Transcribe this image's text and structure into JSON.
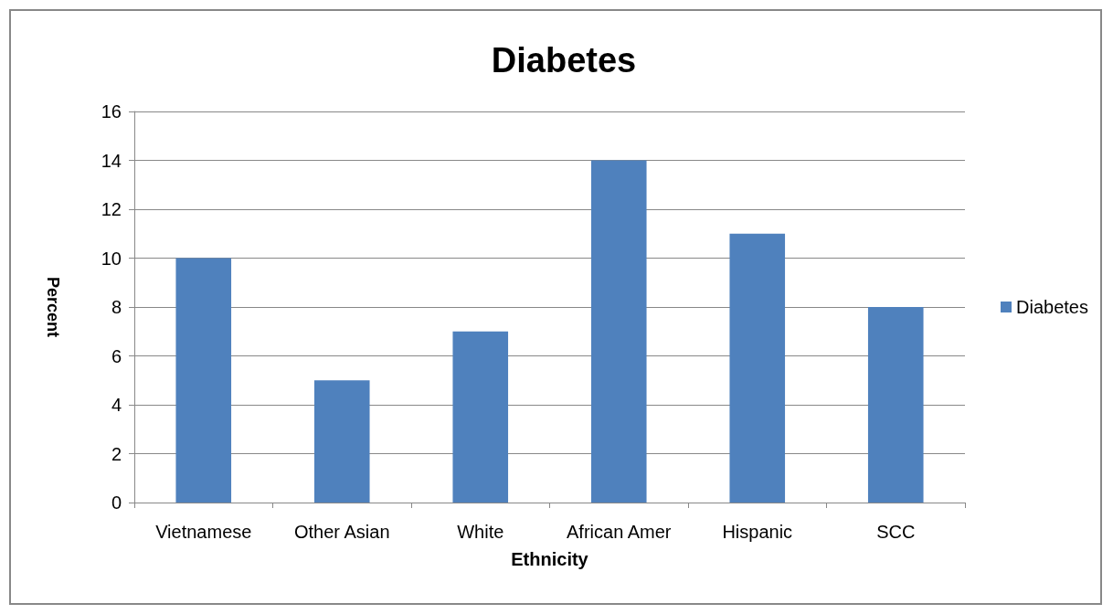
{
  "chart_data": {
    "type": "bar",
    "title": "Diabetes",
    "xlabel": "Ethnicity",
    "ylabel": "Percent",
    "categories": [
      "Vietnamese",
      "Other Asian",
      "White",
      "African Amer",
      "Hispanic",
      "SCC"
    ],
    "series": [
      {
        "name": "Diabetes",
        "color": "#4f81bd",
        "values": [
          10,
          5,
          7,
          14,
          11,
          8
        ]
      }
    ],
    "ylim": [
      0,
      16
    ],
    "yticks": [
      0,
      2,
      4,
      6,
      8,
      10,
      12,
      14,
      16
    ],
    "grid": "y",
    "legend": "right"
  }
}
